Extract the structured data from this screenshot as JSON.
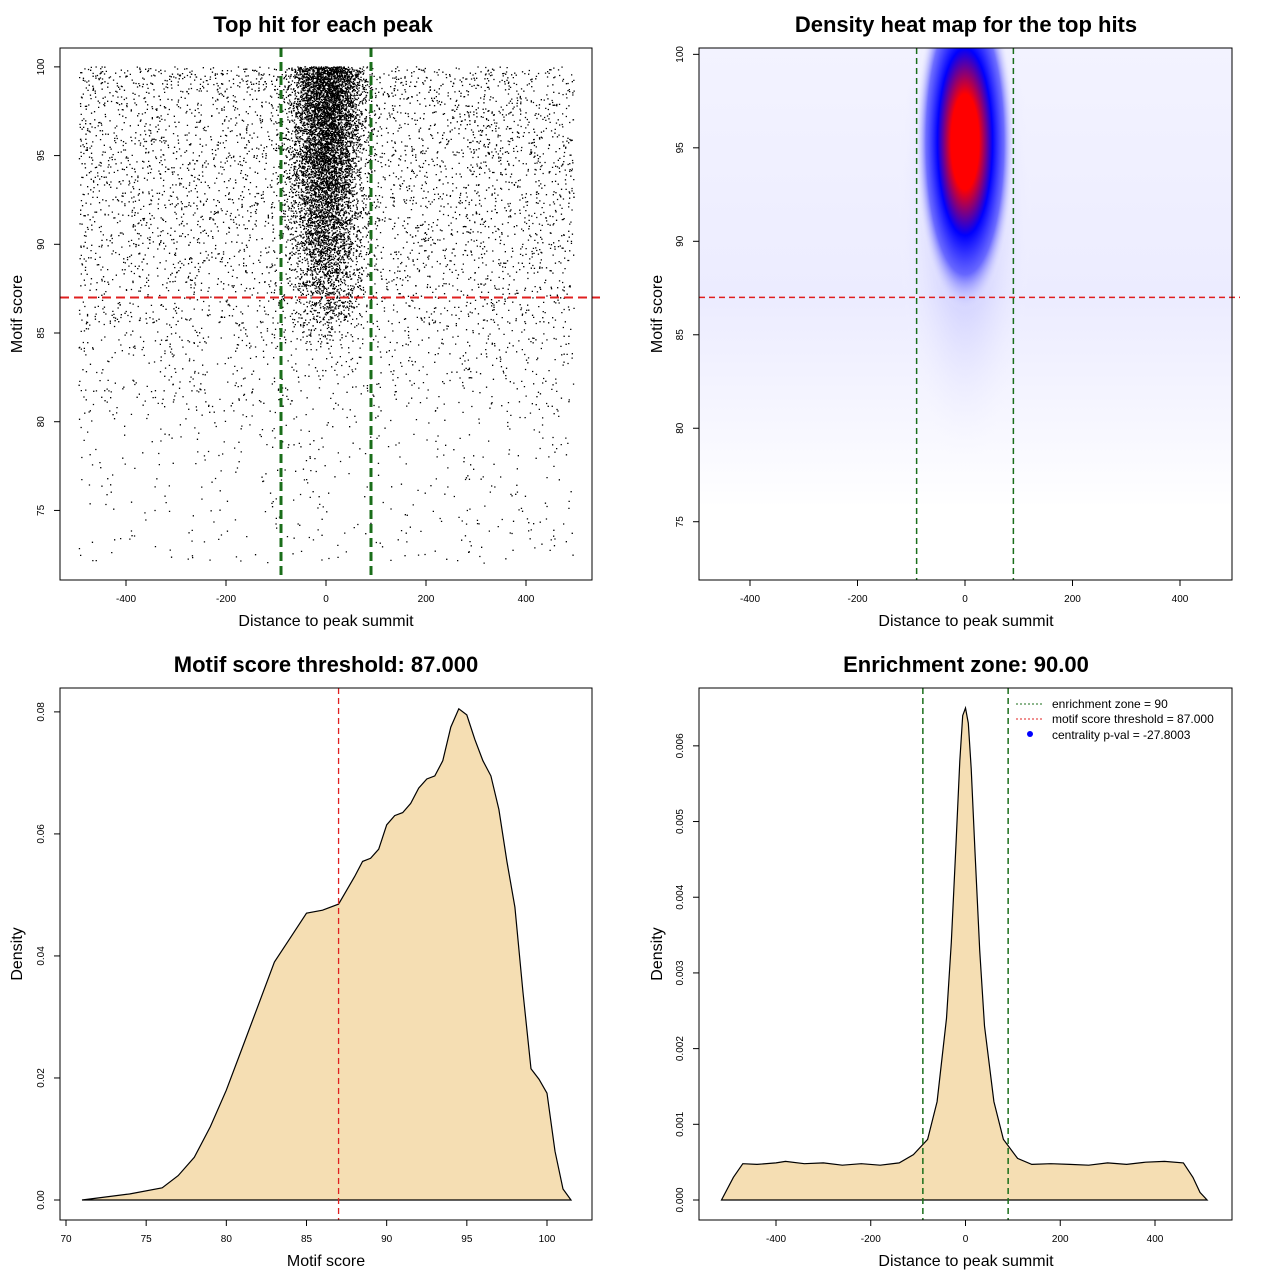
{
  "colors": {
    "threshold": "#e02020",
    "zone": "#1a6e1a",
    "fill": "#f5deb3",
    "heat_low": "#ffffff",
    "heat_mid": "#0000ff",
    "heat_high": "#ff0000",
    "legend_dot": "#0000ff"
  },
  "chart_data": [
    {
      "type": "scatter",
      "title": "Top hit for each peak",
      "xlabel": "Distance to peak summit",
      "ylabel": "Motif score",
      "xlim": [
        -500,
        500
      ],
      "ylim": [
        72,
        100
      ],
      "xticks": [
        "-400",
        "-200",
        "0",
        "200",
        "400"
      ],
      "yticks": [
        "75",
        "80",
        "85",
        "90",
        "95",
        "100"
      ],
      "threshold_y": 87,
      "zone_x": [
        -90,
        90
      ],
      "grid": false
    },
    {
      "type": "heatmap",
      "title": "Density heat map for the top hits",
      "xlabel": "Distance to peak summit",
      "ylabel": "Motif score",
      "xlim": [
        -500,
        500
      ],
      "ylim": [
        72,
        100
      ],
      "xticks": [
        "-400",
        "-200",
        "0",
        "200",
        "400"
      ],
      "yticks": [
        "75",
        "80",
        "85",
        "90",
        "95",
        "100"
      ],
      "threshold_y": 87,
      "zone_x": [
        -90,
        90
      ],
      "peak": {
        "x": 0,
        "y": 95
      },
      "grid": false
    },
    {
      "type": "area",
      "title": "Motif score threshold: 87.000",
      "xlabel": "Motif score",
      "ylabel": "Density",
      "xlim": [
        70,
        102
      ],
      "ylim": [
        0,
        0.085
      ],
      "xticks": [
        "70",
        "75",
        "80",
        "85",
        "90",
        "95",
        "100"
      ],
      "yticks": [
        "0.00",
        "0.02",
        "0.04",
        "0.06",
        "0.08"
      ],
      "threshold_x": 87,
      "x": [
        71,
        74,
        76,
        77,
        78,
        79,
        80,
        81,
        82,
        83,
        84,
        85,
        86,
        87,
        88,
        88.5,
        89,
        89.5,
        90,
        90.5,
        91,
        91.5,
        92,
        92.5,
        93,
        93.5,
        94,
        94.5,
        95,
        95.5,
        96,
        96.5,
        97,
        97.5,
        98,
        98.5,
        99,
        99.5,
        100,
        100.5,
        101,
        101.5
      ],
      "y": [
        0.0,
        0.001,
        0.002,
        0.004,
        0.007,
        0.012,
        0.018,
        0.025,
        0.032,
        0.039,
        0.043,
        0.047,
        0.0475,
        0.0485,
        0.053,
        0.0555,
        0.056,
        0.0575,
        0.0615,
        0.063,
        0.0635,
        0.065,
        0.0675,
        0.069,
        0.0695,
        0.072,
        0.0775,
        0.0805,
        0.0795,
        0.0755,
        0.072,
        0.0695,
        0.064,
        0.0555,
        0.048,
        0.034,
        0.0215,
        0.0198,
        0.0175,
        0.008,
        0.0018,
        0.0
      ]
    },
    {
      "type": "area",
      "title": "Enrichment zone: 90.00",
      "xlabel": "Distance to peak summit",
      "ylabel": "Density",
      "xlim": [
        -525,
        525
      ],
      "ylim": [
        0,
        0.0067
      ],
      "xticks": [
        "-400",
        "-200",
        "0",
        "200",
        "400"
      ],
      "yticks": [
        "0.000",
        "0.001",
        "0.002",
        "0.003",
        "0.004",
        "0.005",
        "0.006"
      ],
      "zone_x": [
        -90,
        90
      ],
      "x": [
        -515,
        -490,
        -470,
        -440,
        -400,
        -380,
        -340,
        -300,
        -260,
        -220,
        -180,
        -140,
        -110,
        -80,
        -60,
        -40,
        -30,
        -20,
        -12,
        -6,
        0,
        6,
        12,
        20,
        30,
        40,
        60,
        80,
        110,
        140,
        180,
        220,
        260,
        300,
        340,
        380,
        420,
        460,
        480,
        495,
        510
      ],
      "y": [
        0.0,
        0.0003,
        0.00048,
        0.00047,
        0.00049,
        0.00051,
        0.00048,
        0.00049,
        0.00046,
        0.00048,
        0.00046,
        0.00049,
        0.0006,
        0.0008,
        0.0013,
        0.0024,
        0.0034,
        0.0047,
        0.0058,
        0.0064,
        0.0065,
        0.0063,
        0.0057,
        0.0046,
        0.0033,
        0.0023,
        0.0013,
        0.0008,
        0.00055,
        0.00047,
        0.00048,
        0.00047,
        0.00046,
        0.00049,
        0.00047,
        0.0005,
        0.00051,
        0.00049,
        0.0003,
        0.0001,
        0.0
      ],
      "legend": [
        {
          "label": "enrichment zone = 90",
          "style": "dotted",
          "color": "#1a6e1a"
        },
        {
          "label": "motif score threshold = 87.000",
          "style": "dotted",
          "color": "#e02020"
        },
        {
          "label": "centrality p-val = -27.8003",
          "style": "dot",
          "color": "#0000ff"
        }
      ],
      "legend_position": "top-right"
    }
  ]
}
